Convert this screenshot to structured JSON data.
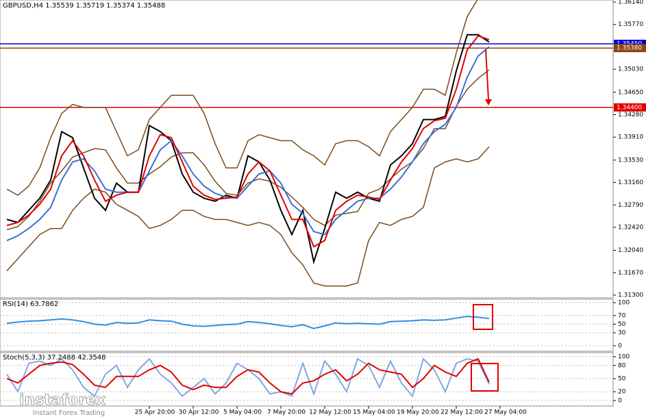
{
  "chart_data": [
    {
      "type": "line",
      "title": "GBPUSD,H4 1.35539 1.35719 1.35374 1.35488",
      "ylim": [
        1.31255,
        1.36174
      ],
      "yticks": [
        {
          "value": 1.3614,
          "label": "1.36140"
        },
        {
          "value": 1.3577,
          "label": "1.35770"
        },
        {
          "value": 1.3503,
          "label": "1.35030"
        },
        {
          "value": 1.3465,
          "label": "1.34650"
        },
        {
          "value": 1.3428,
          "label": "1.34280"
        },
        {
          "value": 1.3391,
          "label": "1.33910"
        },
        {
          "value": 1.3353,
          "label": "1.33530"
        },
        {
          "value": 1.3316,
          "label": "1.33160"
        },
        {
          "value": 1.3279,
          "label": "1.32790"
        },
        {
          "value": 1.3242,
          "label": "1.32420"
        },
        {
          "value": 1.3204,
          "label": "1.32040"
        },
        {
          "value": 1.3167,
          "label": "1.31670"
        },
        {
          "value": 1.313,
          "label": "1.31300"
        }
      ],
      "grid": false,
      "levels": [
        {
          "value": 1.3545,
          "label": "1.35450",
          "color": "#0000cd"
        },
        {
          "value": 1.3538,
          "label": "1.35380",
          "color": "#8b4513"
        },
        {
          "value": 1.344,
          "label": "1.34400",
          "color": "#e00000"
        }
      ],
      "series": [
        {
          "color": "#7a4a1a",
          "values": [
            1.3305,
            1.3295,
            1.331,
            1.334,
            1.339,
            1.343,
            1.3445,
            1.344,
            1.344,
            1.344,
            1.34,
            1.336,
            1.337,
            1.342,
            1.344,
            1.346,
            1.346,
            1.346,
            1.343,
            1.338,
            1.334,
            1.334,
            1.3385,
            1.3395,
            1.339,
            1.3385,
            1.3385,
            1.337,
            1.336,
            1.3345,
            1.338,
            1.3385,
            1.3385,
            1.3375,
            1.336,
            1.34,
            1.342,
            1.344,
            1.347,
            1.347,
            1.346,
            1.353,
            1.359,
            1.362,
            1.363,
            null
          ]
        },
        {
          "color": "#7a4a1a",
          "values": [
            1.3238,
            1.3243,
            1.326,
            1.3285,
            1.3315,
            1.3335,
            1.3358,
            1.3365,
            1.3372,
            1.337,
            1.334,
            1.3315,
            1.3315,
            1.333,
            1.3342,
            1.3358,
            1.3365,
            1.3365,
            1.3345,
            1.3318,
            1.3298,
            1.3295,
            1.3315,
            1.3322,
            1.3318,
            1.3308,
            1.3292,
            1.3275,
            1.3255,
            1.3245,
            1.3262,
            1.3265,
            1.3268,
            1.3298,
            1.3305,
            1.3322,
            1.3338,
            1.335,
            1.3372,
            1.3405,
            1.3405,
            1.3442,
            1.347,
            1.3488,
            1.3502,
            null
          ]
        },
        {
          "color": "#7a4a1a",
          "values": [
            1.317,
            1.319,
            1.321,
            1.323,
            1.324,
            1.324,
            1.327,
            1.329,
            1.3305,
            1.33,
            1.328,
            1.327,
            1.326,
            1.324,
            1.3245,
            1.3255,
            1.327,
            1.327,
            1.326,
            1.3255,
            1.3255,
            1.325,
            1.3245,
            1.325,
            1.3245,
            1.323,
            1.32,
            1.318,
            1.315,
            1.3145,
            1.3145,
            1.3145,
            1.315,
            1.322,
            1.325,
            1.3245,
            1.3255,
            1.326,
            1.3275,
            1.334,
            1.335,
            1.3355,
            1.335,
            1.3355,
            1.3375,
            null
          ]
        },
        {
          "color": "#000000",
          "values": [
            1.3255,
            1.325,
            1.327,
            1.329,
            1.332,
            1.34,
            1.339,
            1.334,
            1.329,
            1.327,
            1.3315,
            1.33,
            1.33,
            1.341,
            1.34,
            1.3385,
            1.333,
            1.33,
            1.329,
            1.3285,
            1.3295,
            1.329,
            1.336,
            1.335,
            1.332,
            1.327,
            1.323,
            1.327,
            1.3185,
            1.324,
            1.33,
            1.329,
            1.33,
            1.329,
            1.3285,
            1.3345,
            1.336,
            1.338,
            1.342,
            1.342,
            1.3425,
            1.35,
            1.356,
            1.356,
            1.3548,
            null
          ]
        },
        {
          "color": "#3a6fd8",
          "values": [
            1.322,
            1.3228,
            1.324,
            1.3255,
            1.3275,
            1.332,
            1.335,
            1.3355,
            1.3335,
            1.3305,
            1.33,
            1.33,
            1.33,
            1.3335,
            1.337,
            1.3385,
            1.336,
            1.333,
            1.331,
            1.3298,
            1.3292,
            1.329,
            1.331,
            1.333,
            1.3335,
            1.3315,
            1.328,
            1.3265,
            1.3235,
            1.323,
            1.3255,
            1.327,
            1.3285,
            1.329,
            1.329,
            1.3305,
            1.3325,
            1.335,
            1.338,
            1.34,
            1.3412,
            1.344,
            1.349,
            1.3525,
            1.354,
            null
          ]
        },
        {
          "color": "#e00000",
          "values": [
            1.3245,
            1.325,
            1.3262,
            1.328,
            1.3305,
            1.336,
            1.3385,
            1.336,
            1.332,
            1.3285,
            1.3295,
            1.33,
            1.33,
            1.336,
            1.3395,
            1.339,
            1.335,
            1.331,
            1.3295,
            1.3288,
            1.329,
            1.3292,
            1.333,
            1.335,
            1.3335,
            1.3295,
            1.3255,
            1.3255,
            1.321,
            1.322,
            1.327,
            1.3285,
            1.3295,
            1.3292,
            1.3288,
            1.332,
            1.335,
            1.3372,
            1.3405,
            1.3418,
            1.3422,
            1.347,
            1.3535,
            1.3558,
            1.3552,
            null
          ]
        }
      ]
    },
    {
      "type": "line",
      "title": "RSI(14) 63.7862",
      "ylim": [
        0,
        100
      ],
      "yticks": [
        100,
        70,
        50,
        30,
        0
      ],
      "grid": true,
      "series": [
        {
          "color": "#2f8ee0",
          "values": [
            52,
            55,
            57,
            58,
            60,
            62,
            60,
            56,
            50,
            48,
            54,
            52,
            53,
            60,
            58,
            57,
            50,
            46,
            45,
            47,
            49,
            50,
            56,
            54,
            51,
            47,
            44,
            49,
            40,
            46,
            53,
            51,
            52,
            51,
            50,
            56,
            57,
            58,
            60,
            59,
            60,
            64,
            68,
            66,
            63,
            null
          ]
        }
      ]
    },
    {
      "type": "line",
      "title": "Stoch(5,3,3) 37.2488 42.3548",
      "ylim": [
        0,
        100
      ],
      "yticks": [
        100,
        80,
        50,
        20,
        0
      ],
      "grid": true,
      "categories": [
        null,
        null,
        null,
        null,
        null,
        null,
        null,
        null,
        null,
        null,
        null,
        null,
        null,
        "25 Apr 20:00",
        null,
        null,
        null,
        "30 Apr 12:00",
        null,
        null,
        null,
        "5 May 04:00",
        null,
        null,
        null,
        "7 May 20:00",
        null,
        null,
        null,
        "12 May 12:00",
        null,
        null,
        null,
        "15 May 04:00",
        null,
        null,
        null,
        "19 May 20:00",
        null,
        null,
        null,
        "22 May 12:00",
        null,
        null,
        null,
        "27 May 04:00"
      ],
      "series": [
        {
          "color": "#7fa8e0",
          "values": [
            60,
            20,
            85,
            90,
            80,
            95,
            70,
            30,
            10,
            60,
            80,
            30,
            70,
            95,
            60,
            40,
            10,
            30,
            50,
            15,
            40,
            85,
            70,
            50,
            15,
            20,
            10,
            85,
            15,
            90,
            60,
            20,
            95,
            80,
            30,
            90,
            40,
            10,
            95,
            70,
            20,
            85,
            95,
            90,
            37,
            null
          ]
        },
        {
          "color": "#e00000",
          "values": [
            50,
            40,
            60,
            80,
            85,
            88,
            82,
            60,
            35,
            30,
            55,
            55,
            55,
            70,
            80,
            65,
            35,
            25,
            35,
            30,
            30,
            55,
            70,
            65,
            40,
            20,
            15,
            40,
            45,
            60,
            70,
            45,
            60,
            85,
            70,
            65,
            60,
            30,
            50,
            80,
            65,
            55,
            85,
            95,
            42,
            null
          ]
        }
      ]
    }
  ],
  "watermark": {
    "brand": "instaforex",
    "tagline": "Instant Forex Trading"
  }
}
